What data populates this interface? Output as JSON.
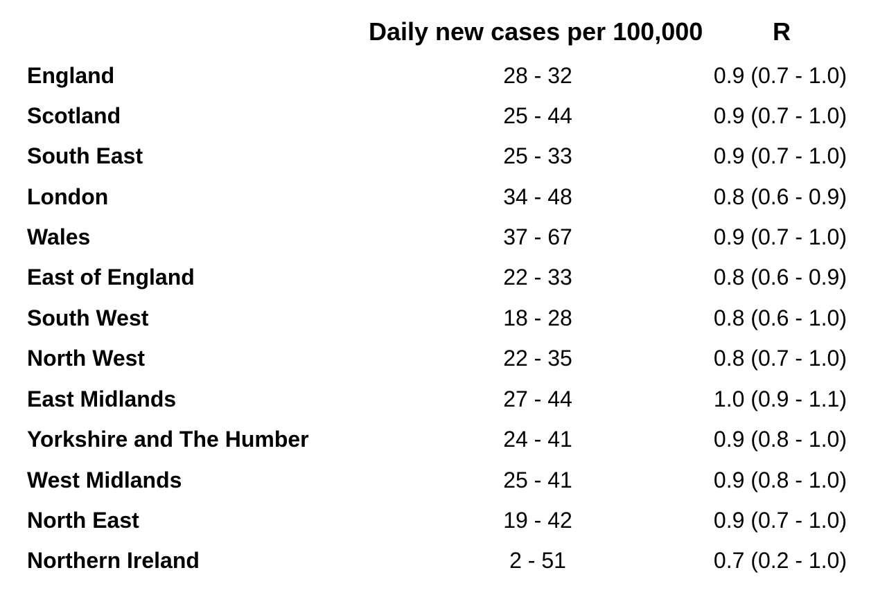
{
  "header": {
    "cases_label": "Daily new cases per 100,000",
    "r_label": "R"
  },
  "rows": [
    {
      "region": "England",
      "cases": "28 - 32",
      "r": "0.9 (0.7 - 1.0)"
    },
    {
      "region": "Scotland",
      "cases": "25 - 44",
      "r": "0.9 (0.7 - 1.0)"
    },
    {
      "region": "South East",
      "cases": "25 - 33",
      "r": "0.9 (0.7 - 1.0)"
    },
    {
      "region": "London",
      "cases": "34 - 48",
      "r": "0.8 (0.6 - 0.9)"
    },
    {
      "region": "Wales",
      "cases": "37 - 67",
      "r": "0.9 (0.7 - 1.0)"
    },
    {
      "region": "East of England",
      "cases": "22 - 33",
      "r": "0.8 (0.6 - 0.9)"
    },
    {
      "region": "South West",
      "cases": "18 - 28",
      "r": "0.8 (0.6 - 1.0)"
    },
    {
      "region": "North West",
      "cases": "22 - 35",
      "r": "0.8 (0.7 - 1.0)"
    },
    {
      "region": "East Midlands",
      "cases": "27 - 44",
      "r": "1.0 (0.9 - 1.1)"
    },
    {
      "region": "Yorkshire and The Humber",
      "cases": "24 - 41",
      "r": "0.9 (0.8 - 1.0)"
    },
    {
      "region": "West Midlands",
      "cases": "25 - 41",
      "r": "0.9 (0.8 - 1.0)"
    },
    {
      "region": "North East",
      "cases": "19 - 42",
      "r": "0.9 (0.7 - 1.0)"
    },
    {
      "region": "Northern Ireland",
      "cases": "2 - 51",
      "r": "0.7 (0.2 - 1.0)"
    }
  ]
}
